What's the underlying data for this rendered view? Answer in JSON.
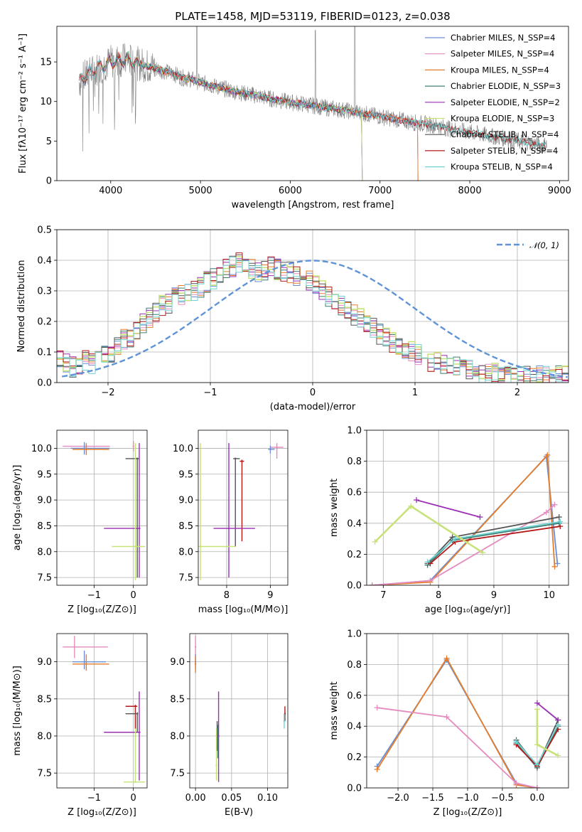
{
  "colors": {
    "chabrier_miles": "#6a8fd6",
    "salpeter_miles": "#e58bbf",
    "kroupa_miles": "#e67d2a",
    "chabrier_elodie": "#3f7f73",
    "salpeter_elodie": "#9b2fb5",
    "kroupa_elodie": "#c8e27a",
    "chabrier_stelib": "#555555",
    "salpeter_stelib": "#b31b1b",
    "kroupa_stelib": "#6fd3d3",
    "gaussian": "#5f93d8",
    "data": "#808080"
  },
  "chart_data": [
    {
      "id": "spectrum",
      "type": "line",
      "title": "PLATE=1458, MJD=53119, FIBERID=0123, z=0.038",
      "xlabel": "wavelength [Angstrom, rest frame]",
      "ylabel": "Flux [fλ10⁻¹⁷ erg cm⁻² s⁻¹ A⁻¹]",
      "xlim": [
        3400,
        9100
      ],
      "ylim": [
        0,
        19.5
      ],
      "xticks": [
        "4000",
        "5000",
        "6000",
        "7000",
        "8000",
        "9000"
      ],
      "yticks": [
        "0",
        "5",
        "10",
        "15"
      ],
      "legend_position": "top-right",
      "series": [
        {
          "name": "Chabrier MILES, N_SSP=4",
          "color_key": "chabrier_miles"
        },
        {
          "name": "Salpeter MILES, N_SSP=4",
          "color_key": "salpeter_miles"
        },
        {
          "name": "Kroupa MILES, N_SSP=4",
          "color_key": "kroupa_miles"
        },
        {
          "name": "Chabrier ELODIE, N_SSP=3",
          "color_key": "chabrier_elodie"
        },
        {
          "name": "Salpeter ELODIE, N_SSP=2",
          "color_key": "salpeter_elodie"
        },
        {
          "name": "Kroupa ELODIE, N_SSP=3",
          "color_key": "kroupa_elodie"
        },
        {
          "name": "Chabrier STELIB, N_SSP=4",
          "color_key": "chabrier_stelib"
        },
        {
          "name": "Salpeter STELIB, N_SSP=4",
          "color_key": "salpeter_stelib"
        },
        {
          "name": "Kroupa STELIB, N_SSP=4",
          "color_key": "kroupa_stelib"
        }
      ],
      "continuum": {
        "x": [
          3650,
          3700,
          3800,
          3900,
          4000,
          4100,
          4200,
          4300,
          4400,
          4500,
          4600,
          4700,
          4800,
          4900,
          5000,
          5200,
          5400,
          5600,
          5800,
          6000,
          6200,
          6400,
          6600,
          6800,
          7000,
          7200,
          7400,
          7600,
          7800,
          8000,
          8200,
          8400,
          8600,
          8800
        ],
        "y": [
          12.5,
          13.0,
          13.8,
          14.5,
          15.0,
          15.2,
          15.3,
          14.8,
          14.5,
          14.2,
          13.8,
          13.5,
          13.0,
          12.8,
          12.4,
          11.8,
          11.2,
          10.8,
          10.3,
          9.9,
          9.6,
          9.2,
          8.9,
          8.5,
          8.1,
          7.7,
          7.3,
          7.0,
          6.5,
          6.1,
          5.7,
          5.3,
          4.9,
          4.5
        ]
      },
      "model_ranges": [
        {
          "color_key": "chabrier_miles",
          "x": [
            3650,
            7420
          ]
        },
        {
          "color_key": "salpeter_miles",
          "x": [
            3650,
            7420
          ]
        },
        {
          "color_key": "kroupa_miles",
          "x": [
            3650,
            7420
          ]
        },
        {
          "color_key": "chabrier_elodie",
          "x": [
            3900,
            6800
          ]
        },
        {
          "color_key": "salpeter_elodie",
          "x": [
            3900,
            6800
          ]
        },
        {
          "color_key": "kroupa_elodie",
          "x": [
            3900,
            6800
          ]
        },
        {
          "color_key": "chabrier_stelib",
          "x": [
            3650,
            8850
          ]
        },
        {
          "color_key": "salpeter_stelib",
          "x": [
            3650,
            8850
          ]
        },
        {
          "color_key": "kroupa_stelib",
          "x": [
            3650,
            8850
          ]
        }
      ]
    },
    {
      "id": "residuals",
      "type": "line",
      "xlabel": "(data-model)/error",
      "ylabel": "Normed distribution",
      "xlim": [
        -2.5,
        2.5
      ],
      "ylim": [
        0,
        0.5
      ],
      "xticks": [
        "−2",
        "−1",
        "0",
        "1",
        "2"
      ],
      "yticks": [
        "0.0",
        "0.1",
        "0.2",
        "0.3",
        "0.4",
        "0.5"
      ],
      "legend_position": "top-right",
      "legend_label": "𝒩(0, 1)",
      "bin_edges_step": 0.1,
      "base_hist": [
        0.07,
        0.06,
        0.05,
        0.06,
        0.07,
        0.06,
        0.08,
        0.09,
        0.1,
        0.12,
        0.14,
        0.15,
        0.17,
        0.19,
        0.21,
        0.23,
        0.25,
        0.26,
        0.28,
        0.29,
        0.3,
        0.3,
        0.31,
        0.33,
        0.34,
        0.35,
        0.37,
        0.38,
        0.39,
        0.38,
        0.37,
        0.36,
        0.37,
        0.38,
        0.37,
        0.36,
        0.36,
        0.35,
        0.34,
        0.33,
        0.32,
        0.3,
        0.28,
        0.27,
        0.25,
        0.23,
        0.22,
        0.21,
        0.2,
        0.18,
        0.16,
        0.15,
        0.13,
        0.12,
        0.11,
        0.1,
        0.09,
        0.08,
        0.07,
        0.07,
        0.06,
        0.05,
        0.05,
        0.04,
        0.04,
        0.03,
        0.03,
        0.03,
        0.03,
        0.02,
        0.02,
        0.02,
        0.02,
        0.02,
        0.02,
        0.02,
        0.02,
        0.02,
        0.02,
        0.02
      ]
    },
    {
      "id": "age_vs_Z",
      "type": "scatter",
      "xlabel": "Z [log₁₀(Z/Z⊙)]",
      "ylabel": "age  [log₁₀(age/yr)]",
      "xlim": [
        -1.95,
        0.35
      ],
      "ylim": [
        7.35,
        10.35
      ],
      "xticks": [
        "−1",
        "0"
      ],
      "yticks": [
        "7.5",
        "8.0",
        "8.5",
        "9.0",
        "9.5",
        "10.0"
      ],
      "points": [
        {
          "c": "salpeter_miles",
          "x": 0.0,
          "xe": [
            -1.8,
            -0.6
          ],
          "y": 10.04,
          "ye": [
            9.94,
            10.14
          ]
        },
        {
          "c": "chabrier_miles",
          "x": -1.25,
          "xe": [
            -1.6,
            -0.6
          ],
          "y": 10.0,
          "ye": [
            9.88,
            10.12
          ]
        },
        {
          "c": "kroupa_miles",
          "x": -1.2,
          "xe": [
            -1.55,
            -0.62
          ],
          "y": 9.98,
          "ye": [
            9.87,
            10.1
          ]
        },
        {
          "c": "chabrier_stelib",
          "x": 0.1,
          "xe": [
            -0.2,
            0.15
          ],
          "y": 9.8,
          "ye": [
            7.5,
            9.82
          ]
        },
        {
          "c": "salpeter_elodie",
          "x": 0.15,
          "xe": [
            -0.75,
            0.18
          ],
          "y": 8.45,
          "ye": [
            7.5,
            10.1
          ]
        },
        {
          "c": "kroupa_elodie",
          "x": 0.05,
          "xe": [
            -0.55,
            0.3
          ],
          "y": 8.1,
          "ye": [
            7.45,
            10.1
          ]
        }
      ]
    },
    {
      "id": "age_vs_mass",
      "type": "scatter",
      "xlabel": "mass [log₁₀(M/M⊙)]",
      "ylabel": "",
      "xlim": [
        7.35,
        9.4
      ],
      "ylim": [
        7.35,
        10.35
      ],
      "xticks": [
        "8",
        "9"
      ],
      "yticks": [
        "7.5",
        "8.0",
        "8.5",
        "9.0",
        "9.5",
        "10.0"
      ],
      "points": [
        {
          "c": "salpeter_miles",
          "x": 9.15,
          "xe": [
            9.0,
            9.3
          ],
          "y": 10.02,
          "ye": [
            9.8,
            10.1
          ]
        },
        {
          "c": "chabrier_miles",
          "x": 9.0,
          "xe": [
            8.95,
            9.1
          ],
          "y": 9.98,
          "ye": [
            9.9,
            10.05
          ]
        },
        {
          "c": "chabrier_stelib",
          "x": 8.2,
          "xe": [
            8.15,
            8.3
          ],
          "y": 9.8,
          "ye": [
            8.1,
            9.82
          ]
        },
        {
          "c": "salpeter_stelib",
          "x": 8.35,
          "xe": [
            8.3,
            8.4
          ],
          "y": 9.75,
          "ye": [
            8.2,
            9.78
          ]
        },
        {
          "c": "salpeter_elodie",
          "x": 8.05,
          "xe": [
            7.7,
            8.65
          ],
          "y": 8.45,
          "ye": [
            7.5,
            10.1
          ]
        },
        {
          "c": "kroupa_elodie",
          "x": 7.4,
          "xe": [
            7.35,
            8.2
          ],
          "y": 8.1,
          "ye": [
            7.45,
            10.1
          ]
        }
      ]
    },
    {
      "id": "weight_vs_age",
      "type": "line",
      "xlabel": "age  [log₁₀(age/yr)]",
      "ylabel": "mass weight",
      "xlim": [
        6.7,
        10.35
      ],
      "ylim": [
        0,
        1.0
      ],
      "xticks": [
        "7",
        "8",
        "9",
        "10"
      ],
      "yticks": [
        "0.0",
        "0.2",
        "0.4",
        "0.6",
        "0.8",
        "1.0"
      ],
      "series": [
        {
          "c": "chabrier_miles",
          "x": [
            6.8,
            7.85,
            9.95,
            10.15
          ],
          "y": [
            0.0,
            0.03,
            0.83,
            0.14
          ]
        },
        {
          "c": "kroupa_miles",
          "x": [
            6.8,
            7.85,
            9.97,
            10.1
          ],
          "y": [
            0.0,
            0.02,
            0.84,
            0.12
          ]
        },
        {
          "c": "salpeter_miles",
          "x": [
            6.8,
            7.85,
            9.95,
            10.1
          ],
          "y": [
            0.0,
            0.03,
            0.47,
            0.52
          ]
        },
        {
          "c": "chabrier_elodie",
          "x": [
            7.8,
            8.25,
            10.18
          ],
          "y": [
            0.13,
            0.29,
            0.4
          ]
        },
        {
          "c": "chabrier_stelib",
          "x": [
            7.8,
            8.25,
            10.18
          ],
          "y": [
            0.14,
            0.31,
            0.44
          ]
        },
        {
          "c": "salpeter_stelib",
          "x": [
            7.85,
            8.3,
            10.2
          ],
          "y": [
            0.14,
            0.28,
            0.38
          ]
        },
        {
          "c": "kroupa_stelib",
          "x": [
            7.8,
            8.3,
            10.2
          ],
          "y": [
            0.15,
            0.3,
            0.41
          ]
        },
        {
          "c": "salpeter_elodie",
          "x": [
            7.6,
            8.75
          ],
          "y": [
            0.55,
            0.44
          ]
        },
        {
          "c": "kroupa_elodie",
          "x": [
            6.85,
            7.5,
            8.8
          ],
          "y": [
            0.28,
            0.51,
            0.21
          ]
        }
      ]
    },
    {
      "id": "mass_vs_Z",
      "type": "scatter",
      "xlabel": "Z [log₁₀(Z/Z⊙)]",
      "ylabel": "mass [log₁₀(M/M⊙)]",
      "xlim": [
        -1.95,
        0.35
      ],
      "ylim": [
        7.3,
        9.38
      ],
      "xticks": [
        "−1",
        "0"
      ],
      "yticks": [
        "7.5",
        "8.0",
        "8.5",
        "9.0"
      ],
      "points": [
        {
          "c": "salpeter_miles",
          "x": -1.5,
          "xe": [
            -1.8,
            -0.65
          ],
          "y": 9.2,
          "ye": [
            9.05,
            9.35
          ]
        },
        {
          "c": "chabrier_miles",
          "x": -1.25,
          "xe": [
            -1.55,
            -0.7
          ],
          "y": 9.0,
          "ye": [
            8.9,
            9.15
          ]
        },
        {
          "c": "kroupa_miles",
          "x": -1.2,
          "xe": [
            -1.55,
            -0.62
          ],
          "y": 8.97,
          "ye": [
            8.88,
            9.1
          ]
        },
        {
          "c": "salpeter_stelib",
          "x": 0.05,
          "xe": [
            -0.2,
            0.1
          ],
          "y": 8.4,
          "ye": [
            8.1,
            8.42
          ]
        },
        {
          "c": "chabrier_stelib",
          "x": 0.1,
          "xe": [
            -0.2,
            0.12
          ],
          "y": 8.3,
          "ye": [
            8.05,
            8.32
          ]
        },
        {
          "c": "salpeter_elodie",
          "x": 0.15,
          "xe": [
            -0.75,
            0.18
          ],
          "y": 8.05,
          "ye": [
            7.4,
            8.6
          ]
        },
        {
          "c": "kroupa_elodie",
          "x": 0.05,
          "xe": [
            -0.25,
            0.3
          ],
          "y": 7.38,
          "ye": [
            7.38,
            8.1
          ]
        }
      ]
    },
    {
      "id": "mass_vs_ebv",
      "type": "scatter",
      "xlabel": "E(B-V)",
      "ylabel": "",
      "xlim": [
        -0.008,
        0.128
      ],
      "ylim": [
        7.3,
        9.38
      ],
      "xticks": [
        "0.00",
        "0.05",
        "0.10"
      ],
      "yticks": [
        "7.5",
        "8.0",
        "8.5",
        "9.0"
      ],
      "points": [
        {
          "c": "salpeter_miles",
          "x": 0.0,
          "y": 9.2,
          "ye": [
            9.0,
            9.35
          ]
        },
        {
          "c": "chabrier_miles",
          "x": 0.0,
          "y": 9.0,
          "ye": [
            8.9,
            9.1
          ]
        },
        {
          "c": "kroupa_miles",
          "x": 0.0,
          "y": 8.97,
          "ye": [
            8.85,
            9.08
          ]
        },
        {
          "c": "chabrier_stelib",
          "x": 0.03,
          "y": 8.0,
          "ye": [
            7.8,
            8.2
          ]
        },
        {
          "c": "chabrier_elodie",
          "x": 0.031,
          "y": 7.95,
          "ye": [
            7.7,
            8.15
          ]
        },
        {
          "c": "salpeter_elodie",
          "x": 0.032,
          "y": 8.0,
          "ye": [
            7.38,
            8.6
          ]
        },
        {
          "c": "kroupa_elodie",
          "x": 0.029,
          "y": 7.6,
          "ye": [
            7.4,
            8.1
          ]
        },
        {
          "c": "salpeter_stelib",
          "x": 0.124,
          "y": 8.3,
          "ye": [
            8.2,
            8.4
          ]
        },
        {
          "c": "kroupa_stelib",
          "x": 0.123,
          "y": 8.2,
          "ye": [
            8.1,
            8.3
          ]
        }
      ]
    },
    {
      "id": "weight_vs_Z",
      "type": "line",
      "xlabel": "Z [log₁₀(Z/Z⊙)]",
      "ylabel": "mass weight",
      "xlim": [
        -2.45,
        0.45
      ],
      "ylim": [
        0,
        1.0
      ],
      "xticks": [
        "−2.0",
        "−1.5",
        "−1.0",
        "−0.5",
        "0.0"
      ],
      "yticks": [
        "0.0",
        "0.2",
        "0.4",
        "0.6",
        "0.8",
        "1.0"
      ],
      "series": [
        {
          "c": "chabrier_miles",
          "x": [
            -2.3,
            -1.3,
            -0.3,
            0.0
          ],
          "y": [
            0.14,
            0.83,
            0.03,
            0.0
          ]
        },
        {
          "c": "kroupa_miles",
          "x": [
            -2.3,
            -1.3,
            -0.3,
            0.0
          ],
          "y": [
            0.12,
            0.84,
            0.02,
            0.0
          ]
        },
        {
          "c": "salpeter_miles",
          "x": [
            -2.3,
            -1.3,
            -0.3,
            0.0
          ],
          "y": [
            0.52,
            0.46,
            0.03,
            0.0
          ]
        },
        {
          "c": "chabrier_elodie",
          "x": [
            -0.3,
            0.0,
            0.3
          ],
          "y": [
            0.29,
            0.13,
            0.4
          ]
        },
        {
          "c": "chabrier_stelib",
          "x": [
            -0.3,
            0.0,
            0.3
          ],
          "y": [
            0.31,
            0.14,
            0.44
          ]
        },
        {
          "c": "salpeter_stelib",
          "x": [
            -0.3,
            0.0,
            0.3
          ],
          "y": [
            0.28,
            0.14,
            0.38
          ]
        },
        {
          "c": "kroupa_stelib",
          "x": [
            -0.3,
            0.0,
            0.3
          ],
          "y": [
            0.3,
            0.15,
            0.41
          ]
        },
        {
          "c": "salpeter_elodie",
          "x": [
            0.0,
            0.3
          ],
          "y": [
            0.55,
            0.44
          ]
        },
        {
          "c": "kroupa_elodie",
          "x": [
            0.0,
            0.0,
            0.3
          ],
          "y": [
            0.51,
            0.28,
            0.21
          ]
        }
      ]
    }
  ]
}
